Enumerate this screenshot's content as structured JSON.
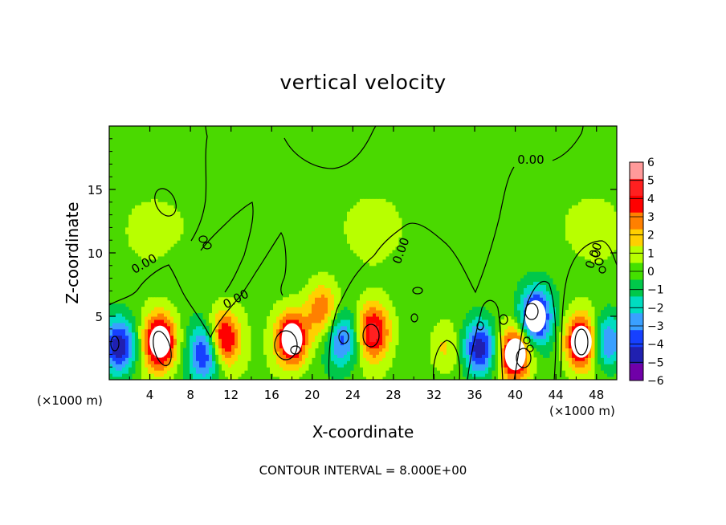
{
  "chart_data": {
    "type": "heatmap",
    "title": "vertical velocity",
    "xlabel": "X-coordinate",
    "ylabel": "Z-coordinate",
    "x_unit_left": "(×1000 m)",
    "x_unit_right": "(×1000 m)",
    "xlim": [
      0,
      50
    ],
    "ylim": [
      0,
      20
    ],
    "x_ticks": [
      "4",
      "8",
      "12",
      "16",
      "20",
      "24",
      "28",
      "32",
      "36",
      "40",
      "44",
      "48"
    ],
    "y_ticks": [
      "5",
      "10",
      "15"
    ],
    "colorbar": {
      "labels": [
        "6",
        "5",
        "4",
        "3",
        "2",
        "1",
        "0",
        "−1",
        "−2",
        "−3",
        "−4",
        "−5",
        "−6"
      ],
      "colors": [
        "#ff9a9a",
        "#ff2020",
        "#ff0000",
        "#ff8000",
        "#ffd000",
        "#b8ff00",
        "#44e000",
        "#00c84a",
        "#00dcc0",
        "#3aa0ff",
        "#1640ff",
        "#2020b0",
        "#7000a8"
      ]
    },
    "contour_labels": [
      "0.00",
      "0.00",
      "0.00",
      "0.00",
      "0.00"
    ],
    "features": [
      {
        "x": 1.0,
        "z": 2.7,
        "w": -5.5
      },
      {
        "x": 5.0,
        "z": 3.0,
        "w": 6.5
      },
      {
        "x": 9.5,
        "z": 2.2,
        "w": -5.0
      },
      {
        "x": 11.2,
        "z": 3.2,
        "w": 5.5
      },
      {
        "x": 18.0,
        "z": 3.2,
        "w": 6.0
      },
      {
        "x": 21.0,
        "z": 5.5,
        "w": 3.5
      },
      {
        "x": 23.0,
        "z": 3.2,
        "w": -4.0
      },
      {
        "x": 26.0,
        "z": 3.8,
        "w": 5.0
      },
      {
        "x": 33.0,
        "z": 2.5,
        "w": 1.8
      },
      {
        "x": 36.5,
        "z": 2.5,
        "w": -5.5
      },
      {
        "x": 40.0,
        "z": 2.0,
        "w": 6.0
      },
      {
        "x": 42.0,
        "z": 5.0,
        "w": -6.0
      },
      {
        "x": 46.5,
        "z": 3.0,
        "w": 6.0
      },
      {
        "x": 49.0,
        "z": 3.0,
        "w": -4.0
      }
    ],
    "contour_interval": "CONTOUR INTERVAL = 8.000E+00",
    "grid": false,
    "legend": "right colorbar"
  }
}
